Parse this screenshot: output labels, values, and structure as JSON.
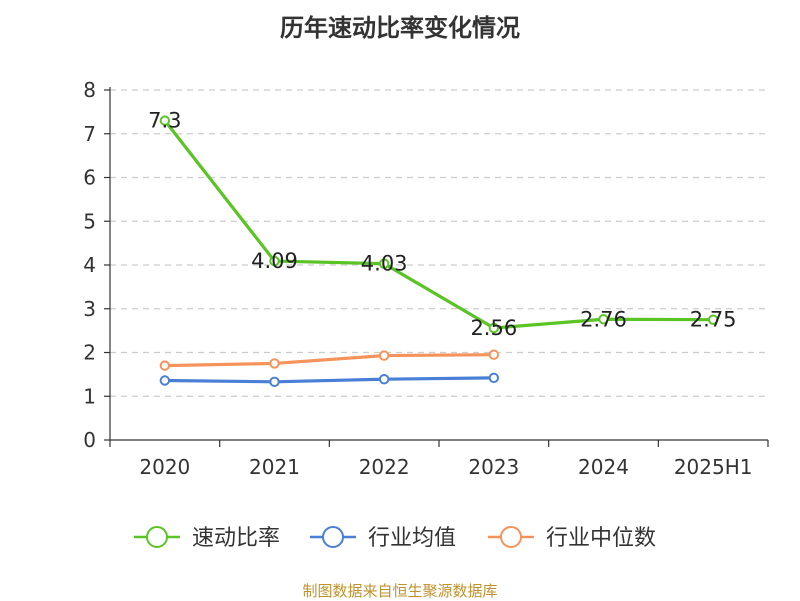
{
  "title": "历年速动比率变化情况",
  "source": "制图数据来自恒生聚源数据库",
  "colors": {
    "source": "#c0922e"
  },
  "chart_data": {
    "type": "line",
    "categories": [
      "2020",
      "2021",
      "2022",
      "2023",
      "2024",
      "2025H1"
    ],
    "ylim": [
      0,
      8
    ],
    "yticks": [
      0,
      1,
      2,
      3,
      4,
      5,
      6,
      7,
      8
    ],
    "grid": "horizontal dashed",
    "legend": "bottom-center",
    "series": [
      {
        "name": "速动比率",
        "color": "#5bc425",
        "values": [
          7.3,
          4.09,
          4.03,
          2.56,
          2.76,
          2.75
        ],
        "labels": [
          "7.3",
          "4.09",
          "4.03",
          "2.56",
          "2.76",
          "2.75"
        ]
      },
      {
        "name": "行业均值",
        "color": "#4a7fd6",
        "values": [
          1.36,
          1.33,
          1.39,
          1.42,
          null,
          null
        ]
      },
      {
        "name": "行业中位数",
        "color": "#f5935a",
        "values": [
          1.7,
          1.75,
          1.93,
          1.95,
          null,
          null
        ]
      }
    ]
  }
}
